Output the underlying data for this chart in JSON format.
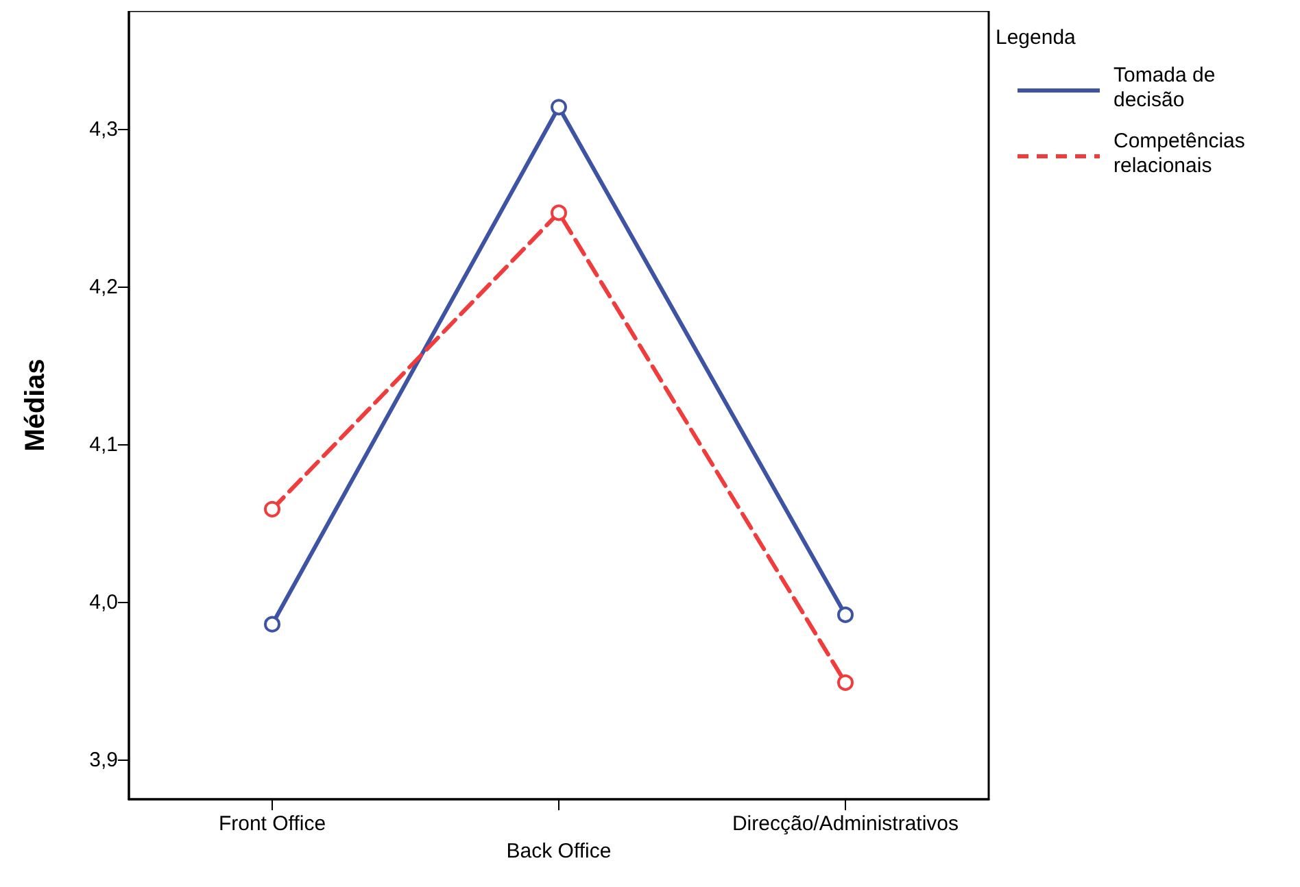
{
  "chart_data": {
    "type": "line",
    "ylabel": "Médias",
    "legend_title": "Legenda",
    "legend": "top right",
    "marker": "circle",
    "grid": false,
    "categories": [
      "Front Office",
      "Back Office",
      "Direcção/Administrativos"
    ],
    "ylim": [
      3.875,
      4.375
    ],
    "yticks": [
      {
        "value": 3.9,
        "label": "3,9"
      },
      {
        "value": 4.0,
        "label": "4,0"
      },
      {
        "value": 4.1,
        "label": "4,1"
      },
      {
        "value": 4.2,
        "label": "4,2"
      },
      {
        "value": 4.3,
        "label": "4,3"
      }
    ],
    "series": [
      {
        "name": "Tomada de decisão",
        "color": "#3f53a5",
        "line_style": "solid",
        "values": [
          3.986,
          4.314,
          3.992
        ]
      },
      {
        "name": "Competências relacionais",
        "color": "#f03c3c",
        "line_style": "dashed",
        "values": [
          4.059,
          4.247,
          3.949
        ]
      }
    ]
  }
}
